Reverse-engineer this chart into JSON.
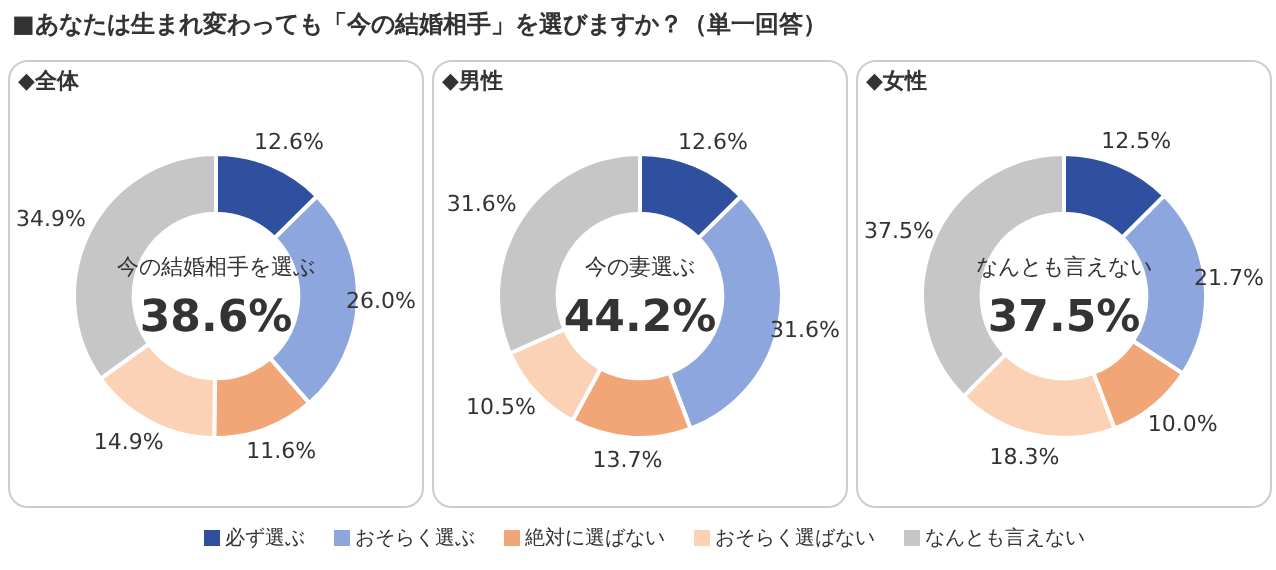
{
  "chart_data": [
    {
      "type": "donut",
      "title": "■あなたは生まれ変わっても「今の結婚相手」を選びますか？（単一回答）",
      "subtitle": "◆全体",
      "categories": [
        null,
        null,
        null,
        null,
        null
      ],
      "values": [
        12.6,
        26.0,
        11.6,
        14.9,
        34.9
      ],
      "colors": [
        "#2f4f9f",
        "#8ea6de",
        "#f2a678",
        "#fbd2b6",
        "#c6c6c6"
      ],
      "value_labels": [
        "12.6%",
        "26.0%",
        "11.6%",
        "14.9%",
        "34.9%"
      ],
      "annotations": [
        "今の結婚相手を選ぶ",
        "38.6%"
      ]
    },
    {
      "type": "donut",
      "subtitle": "◆男性",
      "categories": [
        "必ず選ぶ",
        "おそらく選ぶ",
        "絶対に選ばない",
        "おそらく選ばない",
        "なんとも言えない"
      ],
      "values": [
        12.6,
        31.6,
        13.7,
        10.5,
        31.6
      ],
      "colors": [
        "#2f4f9f",
        "#8ea6de",
        "#f2a678",
        "#fbd2b6",
        "#c6c6c6"
      ],
      "value_labels": [
        "12.6%",
        "31.6%",
        "13.7%",
        "10.5%",
        "31.6%"
      ],
      "annotations": [
        "今の妻選ぶ",
        "44.2%"
      ],
      "legend": "bottom"
    },
    {
      "type": "donut",
      "subtitle": "◆女性",
      "categories": [
        null,
        null,
        null,
        null,
        null
      ],
      "values": [
        12.5,
        21.7,
        10.0,
        18.3,
        37.5
      ],
      "colors": [
        "#2f4f9f",
        "#8ea6de",
        "#f2a678",
        "#fbd2b6",
        "#c6c6c6"
      ],
      "value_labels": [
        "12.5%",
        "21.7%",
        "10.0%",
        "18.3%",
        "37.5%"
      ],
      "annotations": [
        "なんとも言えない",
        "37.5%"
      ]
    }
  ]
}
